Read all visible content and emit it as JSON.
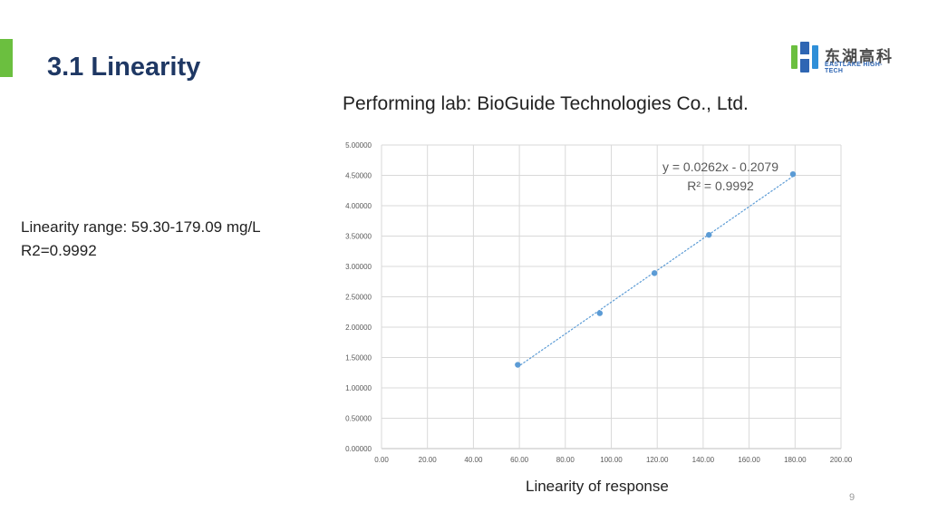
{
  "slide": {
    "title": "3.1 Linearity",
    "lab": "Performing lab: BioGuide Technologies Co., Ltd.",
    "range_text": "Linearity range: 59.30-179.09 mg/L",
    "r2_text": "R2=0.9992",
    "page_number": "9",
    "accent_color": "#6bbf3f",
    "title_color": "#1f3864"
  },
  "logo": {
    "cn": "东湖高科",
    "en": "EASTLAKE HIGH-TECH"
  },
  "chart_data": {
    "type": "scatter",
    "title": "",
    "xlabel": "Linearity of response",
    "ylabel": "",
    "xlim": [
      0,
      200
    ],
    "ylim": [
      0,
      5
    ],
    "x_ticks": [
      "0.00",
      "20.00",
      "40.00",
      "60.00",
      "80.00",
      "100.00",
      "120.00",
      "140.00",
      "160.00",
      "180.00",
      "200.00"
    ],
    "y_ticks": [
      "0.00000",
      "0.50000",
      "1.00000",
      "1.50000",
      "2.00000",
      "2.50000",
      "3.00000",
      "3.50000",
      "4.00000",
      "4.50000",
      "5.00000"
    ],
    "grid": true,
    "series": [
      {
        "x": [
          59.3,
          95.0,
          118.8,
          142.5,
          179.09
        ],
        "y": [
          1.38,
          2.23,
          2.89,
          3.52,
          4.52
        ],
        "color": "#5b9bd5"
      }
    ],
    "trendline": {
      "slope": 0.0262,
      "intercept": -0.2079,
      "style": "dotted",
      "equation": "y = 0.0262x - 0.2079",
      "r2": "R² = 0.9992"
    }
  }
}
